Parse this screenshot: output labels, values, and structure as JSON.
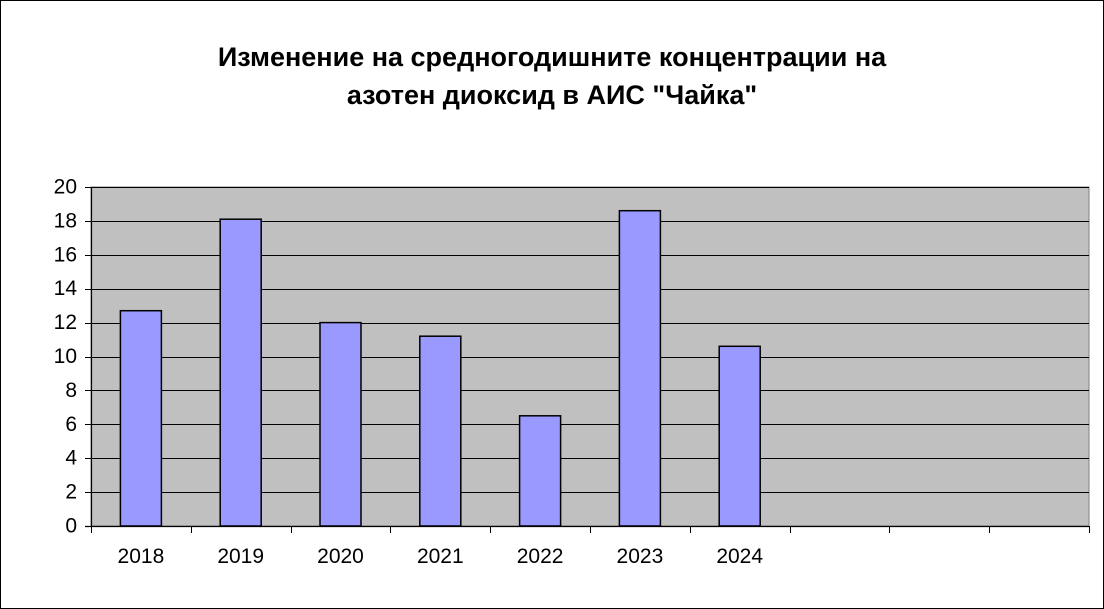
{
  "chart_data": {
    "type": "bar",
    "title_lines": [
      "Изменение на средногодишните концентрации на",
      "азотен диоксид в АИС \"Чайка\""
    ],
    "categories": [
      "2018",
      "2019",
      "2020",
      "2021",
      "2022",
      "2023",
      "2024"
    ],
    "category_slots": 10,
    "values": [
      12.7,
      18.1,
      12.0,
      11.2,
      6.5,
      18.6,
      10.6
    ],
    "ylim": [
      0,
      20
    ],
    "yticks": [
      0,
      2,
      4,
      6,
      8,
      10,
      12,
      14,
      16,
      18,
      20
    ],
    "ytick_labels": [
      "0",
      "2",
      "4",
      "6",
      "8",
      "10",
      "12",
      "14",
      "16",
      "18",
      "20"
    ],
    "xlabel": "",
    "ylabel": "",
    "grid": true,
    "colors": {
      "bar_fill": "#9999ff",
      "bar_stroke": "#000000",
      "plot_background": "#c0c0c0",
      "gridline": "#000000"
    }
  }
}
